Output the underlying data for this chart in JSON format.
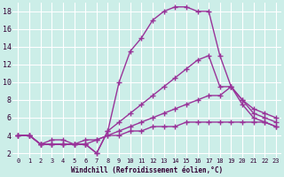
{
  "background_color": "#cceee8",
  "line_color": "#993399",
  "marker": "+",
  "markersize": 4,
  "linewidth": 1.0,
  "xlim": [
    -0.5,
    23.5
  ],
  "ylim": [
    1.5,
    19
  ],
  "xticks": [
    0,
    1,
    2,
    3,
    4,
    5,
    6,
    7,
    8,
    9,
    10,
    11,
    12,
    13,
    14,
    15,
    16,
    17,
    18,
    19,
    20,
    21,
    22,
    23
  ],
  "yticks": [
    2,
    4,
    6,
    8,
    10,
    12,
    14,
    16,
    18
  ],
  "xlabel": "Windchill (Refroidissement éolien,°C)",
  "grid_color": "#ffffff",
  "curves": [
    {
      "x": [
        0,
        1,
        2,
        3,
        4,
        5,
        6,
        7,
        8,
        9,
        10,
        11,
        12,
        13,
        14,
        15,
        16,
        17,
        18,
        19,
        20,
        21,
        22,
        23
      ],
      "y": [
        4.0,
        4.0,
        3.0,
        3.5,
        3.5,
        3.0,
        3.0,
        2.0,
        4.5,
        10.0,
        13.5,
        15.0,
        17.0,
        18.0,
        18.5,
        18.5,
        18.0,
        18.0,
        13.0,
        9.5,
        7.5,
        6.0,
        5.5,
        5.0
      ]
    },
    {
      "x": [
        0,
        1,
        2,
        3,
        4,
        5,
        6,
        7,
        8,
        9,
        10,
        11,
        12,
        13,
        14,
        15,
        16,
        17,
        18,
        19,
        20,
        21,
        22,
        23
      ],
      "y": [
        4.0,
        4.0,
        3.0,
        3.0,
        3.0,
        3.0,
        3.0,
        2.0,
        4.5,
        5.5,
        6.5,
        7.5,
        8.5,
        9.5,
        10.5,
        11.5,
        12.5,
        13.0,
        9.5,
        9.5,
        8.0,
        6.5,
        6.0,
        5.5
      ]
    },
    {
      "x": [
        0,
        1,
        2,
        3,
        4,
        5,
        6,
        7,
        8,
        9,
        10,
        11,
        12,
        13,
        14,
        15,
        16,
        17,
        18,
        19,
        20,
        21,
        22,
        23
      ],
      "y": [
        4.0,
        4.0,
        3.0,
        3.0,
        3.0,
        3.0,
        3.0,
        3.5,
        4.0,
        4.5,
        5.0,
        5.5,
        6.0,
        6.5,
        7.0,
        7.5,
        8.0,
        8.5,
        8.5,
        9.5,
        8.0,
        7.0,
        6.5,
        6.0
      ]
    },
    {
      "x": [
        0,
        1,
        2,
        3,
        4,
        5,
        6,
        7,
        8,
        9,
        10,
        11,
        12,
        13,
        14,
        15,
        16,
        17,
        18,
        19,
        20,
        21,
        22,
        23
      ],
      "y": [
        4.0,
        4.0,
        3.0,
        3.0,
        3.0,
        3.0,
        3.5,
        3.5,
        4.0,
        4.0,
        4.5,
        4.5,
        5.0,
        5.0,
        5.0,
        5.5,
        5.5,
        5.5,
        5.5,
        5.5,
        5.5,
        5.5,
        5.5,
        5.0
      ]
    }
  ]
}
